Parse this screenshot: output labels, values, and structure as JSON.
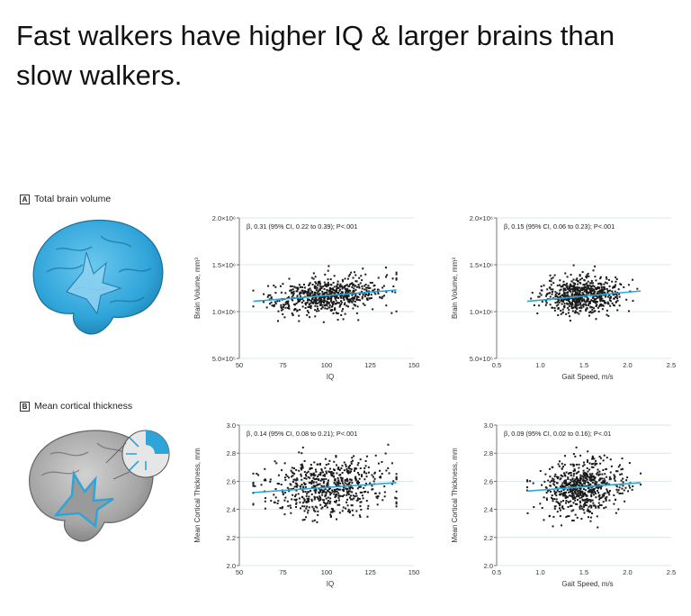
{
  "headline": "Fast walkers have higher IQ & larger brains than slow walkers.",
  "panels": {
    "a": {
      "letter": "A",
      "label": "Total brain volume"
    },
    "b": {
      "letter": "B",
      "label": "Mean cortical thickness"
    }
  },
  "colors": {
    "point": "#1a1a1a",
    "fit_line": "#2aa6d8",
    "brain_blue": "#2fa4d9",
    "brain_gray": "#9a9a9a",
    "grid": "#cfe1ea"
  },
  "chart_data": [
    {
      "id": "a-iq",
      "type": "scatter",
      "annotation": "β, 0.31 (95% CI, 0.22 to 0.39); P<.001",
      "xlabel": "IQ",
      "ylabel": "Brain Volume, mm³",
      "xlim": [
        50,
        150
      ],
      "ylim": [
        500000,
        2000000
      ],
      "xticks": [
        "50",
        "75",
        "100",
        "125",
        "150"
      ],
      "xtick_values": [
        50,
        75,
        100,
        125,
        150
      ],
      "yticks": [
        "5.0×10⁵",
        "1.0×10⁶",
        "1.5×10⁶",
        "2.0×10⁶"
      ],
      "ytick_values": [
        500000,
        1000000,
        1500000,
        2000000
      ],
      "grid": true,
      "fit": [
        [
          58,
          1110000
        ],
        [
          140,
          1230000
        ]
      ],
      "points": {
        "n": 650,
        "x_center": 100,
        "x_sd": 17,
        "x_min": 58,
        "x_max": 140,
        "y_center": 1170000,
        "y_sd": 95000
      }
    },
    {
      "id": "a-gait",
      "type": "scatter",
      "annotation": "β, 0.15 (95% CI, 0.06 to 0.23); P<.001",
      "xlabel": "Gait Speed, m/s",
      "ylabel": "Brain Volume, mm³",
      "xlim": [
        0.5,
        2.5
      ],
      "ylim": [
        500000,
        2000000
      ],
      "xticks": [
        "0.5",
        "1.0",
        "1.5",
        "2.0",
        "2.5"
      ],
      "xtick_values": [
        0.5,
        1.0,
        1.5,
        2.0,
        2.5
      ],
      "yticks": [
        "5.0×10⁵",
        "1.0×10⁶",
        "1.5×10⁶",
        "2.0×10⁶"
      ],
      "ytick_values": [
        500000,
        1000000,
        1500000,
        2000000
      ],
      "grid": true,
      "fit": [
        [
          0.85,
          1110000
        ],
        [
          2.15,
          1220000
        ]
      ],
      "points": {
        "n": 650,
        "x_center": 1.48,
        "x_sd": 0.22,
        "x_min": 0.85,
        "x_max": 2.15,
        "y_center": 1170000,
        "y_sd": 95000
      }
    },
    {
      "id": "b-iq",
      "type": "scatter",
      "annotation": "β, 0.14 (95% CI, 0.08 to 0.21); P<.001",
      "xlabel": "IQ",
      "ylabel": "Mean Cortical Thickness, mm",
      "xlim": [
        50,
        150
      ],
      "ylim": [
        2.0,
        3.0
      ],
      "xticks": [
        "50",
        "75",
        "100",
        "125",
        "150"
      ],
      "xtick_values": [
        50,
        75,
        100,
        125,
        150
      ],
      "yticks": [
        "2.0",
        "2.2",
        "2.4",
        "2.6",
        "2.8",
        "3.0"
      ],
      "ytick_values": [
        2.0,
        2.2,
        2.4,
        2.6,
        2.8,
        3.0
      ],
      "grid": true,
      "fit": [
        [
          58,
          2.52
        ],
        [
          140,
          2.59
        ]
      ],
      "points": {
        "n": 650,
        "x_center": 100,
        "x_sd": 17,
        "x_min": 58,
        "x_max": 140,
        "y_center": 2.56,
        "y_sd": 0.1
      }
    },
    {
      "id": "b-gait",
      "type": "scatter",
      "annotation": "β, 0.09 (95% CI, 0.02 to 0.16); P<.01",
      "xlabel": "Gait Speed, m/s",
      "ylabel": "Mean Cortical Thickness, mm",
      "xlim": [
        0.5,
        2.5
      ],
      "ylim": [
        2.0,
        3.0
      ],
      "xticks": [
        "0.5",
        "1.0",
        "1.5",
        "2.0",
        "2.5"
      ],
      "xtick_values": [
        0.5,
        1.0,
        1.5,
        2.0,
        2.5
      ],
      "yticks": [
        "2.0",
        "2.2",
        "2.4",
        "2.6",
        "2.8",
        "3.0"
      ],
      "ytick_values": [
        2.0,
        2.2,
        2.4,
        2.6,
        2.8,
        3.0
      ],
      "grid": true,
      "fit": [
        [
          0.85,
          2.53
        ],
        [
          2.15,
          2.59
        ]
      ],
      "points": {
        "n": 650,
        "x_center": 1.48,
        "x_sd": 0.22,
        "x_min": 0.85,
        "x_max": 2.15,
        "y_center": 2.56,
        "y_sd": 0.1
      }
    }
  ]
}
